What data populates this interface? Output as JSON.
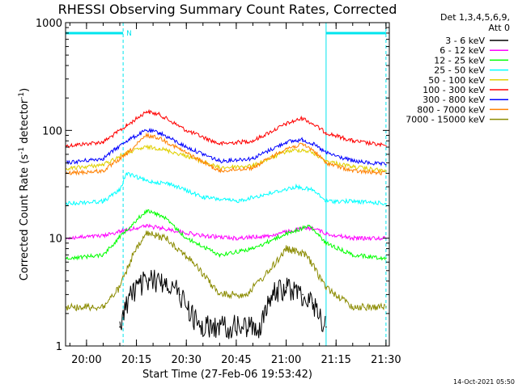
{
  "chart_data": {
    "type": "line",
    "title": "RHESSI Observing Summary Count Rates, Corrected",
    "xlabel": "Start Time (27-Feb-06 19:53:42)",
    "ylabel": "Corrected Count Rate (s",
    "ylabel_sup1": "-1",
    "ylabel_mid": " detector",
    "ylabel_sup2": "-1",
    "ylabel_end": ")",
    "x_scale": "time",
    "y_scale": "log",
    "xlim": [
      "19:53:42",
      "21:31:00"
    ],
    "ylim": [
      1,
      1000
    ],
    "x_ticks": [
      "20:00",
      "20:15",
      "20:30",
      "20:45",
      "21:00",
      "21:15",
      "21:30"
    ],
    "y_ticks": [
      "1",
      "10",
      "100",
      "1000"
    ],
    "legend": {
      "placement": "right",
      "header": [
        "Det 1,3,4,5,6,9,",
        "Att 0"
      ],
      "entries": [
        {
          "label": "3 - 6 keV",
          "color": "#000000"
        },
        {
          "label": "6 - 12 keV",
          "color": "#ff00ff"
        },
        {
          "label": "12 - 25 keV",
          "color": "#00ff00"
        },
        {
          "label": "25 - 50 keV",
          "color": "#00ffff"
        },
        {
          "label": "50 - 100 keV",
          "color": "#e0d000"
        },
        {
          "label": "100 - 300 keV",
          "color": "#ff0000"
        },
        {
          "label": "300 - 800 keV",
          "color": "#0000ff"
        },
        {
          "label": "800 - 7000 keV",
          "color": "#ff8000"
        },
        {
          "label": "7000 - 15000 keV",
          "color": "#8b8b00"
        }
      ]
    },
    "night_intervals": [
      {
        "start": "19:53:42",
        "end": "20:11:00",
        "label": "N"
      },
      {
        "start": "21:12:00",
        "end": "21:30:00",
        "label": ""
      }
    ],
    "series": [
      {
        "color": "#ff0000",
        "x": [
          "19:54",
          "20:05",
          "20:12",
          "20:18",
          "20:22",
          "20:30",
          "20:40",
          "20:50",
          "21:00",
          "21:05",
          "21:08",
          "21:12",
          "21:20",
          "21:30"
        ],
        "values": [
          72,
          78,
          110,
          150,
          140,
          100,
          75,
          80,
          115,
          130,
          115,
          95,
          80,
          72
        ]
      },
      {
        "color": "#0000ff",
        "x": [
          "19:54",
          "20:05",
          "20:12",
          "20:18",
          "20:22",
          "20:30",
          "20:40",
          "20:50",
          "21:00",
          "21:05",
          "21:08",
          "21:12",
          "21:20",
          "21:30"
        ],
        "values": [
          50,
          55,
          80,
          100,
          95,
          70,
          52,
          55,
          78,
          82,
          75,
          62,
          52,
          48
        ]
      },
      {
        "color": "#e0d000",
        "x": [
          "19:54",
          "20:05",
          "20:12",
          "20:18",
          "20:22",
          "20:30",
          "20:40",
          "20:50",
          "21:00",
          "21:05",
          "21:08",
          "21:12",
          "21:20",
          "21:30"
        ],
        "values": [
          44,
          48,
          62,
          70,
          68,
          58,
          45,
          47,
          64,
          66,
          62,
          52,
          46,
          42
        ]
      },
      {
        "color": "#ff8000",
        "x": [
          "19:54",
          "20:05",
          "20:12",
          "20:18",
          "20:22",
          "20:30",
          "20:40",
          "20:50",
          "21:00",
          "21:05",
          "21:08",
          "21:12",
          "21:20",
          "21:30"
        ],
        "values": [
          40,
          42,
          60,
          90,
          85,
          62,
          42,
          45,
          68,
          74,
          66,
          50,
          42,
          40
        ]
      },
      {
        "color": "#00ffff",
        "x": [
          "19:54",
          "20:05",
          "20:10",
          "20:12",
          "20:18",
          "20:25",
          "20:35",
          "20:45",
          "20:55",
          "21:03",
          "21:08",
          "21:12",
          "21:20",
          "21:30"
        ],
        "values": [
          21,
          22,
          28,
          40,
          34,
          32,
          24,
          22,
          26,
          30,
          28,
          22,
          22,
          21
        ]
      },
      {
        "color": "#ff00ff",
        "x": [
          "19:54",
          "20:05",
          "20:12",
          "20:18",
          "20:25",
          "20:35",
          "20:45",
          "20:55",
          "21:03",
          "21:08",
          "21:12",
          "21:20",
          "21:30"
        ],
        "values": [
          10,
          10.5,
          12,
          13,
          12,
          10.5,
          10,
          10.5,
          12,
          12.5,
          11,
          10,
          10
        ]
      },
      {
        "color": "#00ff00",
        "x": [
          "19:54",
          "20:05",
          "20:12",
          "20:18",
          "20:23",
          "20:30",
          "20:40",
          "20:50",
          "21:00",
          "21:07",
          "21:12",
          "21:20",
          "21:30"
        ],
        "values": [
          6.5,
          7,
          12,
          18,
          16,
          10,
          7,
          8,
          11,
          13,
          9,
          7,
          6.5
        ]
      },
      {
        "color": "#8b8b00",
        "x": [
          "19:54",
          "20:05",
          "20:10",
          "20:14",
          "20:18",
          "20:24",
          "20:32",
          "20:40",
          "20:48",
          "20:55",
          "21:00",
          "21:06",
          "21:12",
          "21:20",
          "21:30"
        ],
        "values": [
          2.3,
          2.3,
          3.5,
          7,
          11,
          10,
          6,
          3,
          3,
          5,
          8,
          7,
          3.5,
          2.3,
          2.3
        ]
      },
      {
        "color": "#000000",
        "x": [
          "20:10",
          "20:13",
          "20:18",
          "20:24",
          "20:28",
          "20:34",
          "20:52",
          "20:56",
          "21:00",
          "21:05",
          "21:08",
          "21:12"
        ],
        "values": [
          1.5,
          3,
          4,
          4,
          3,
          1.5,
          1.5,
          3,
          3.5,
          3,
          2.5,
          1.5
        ]
      }
    ]
  },
  "footer": {
    "timestamp": "14-Oct-2021 05:50"
  }
}
